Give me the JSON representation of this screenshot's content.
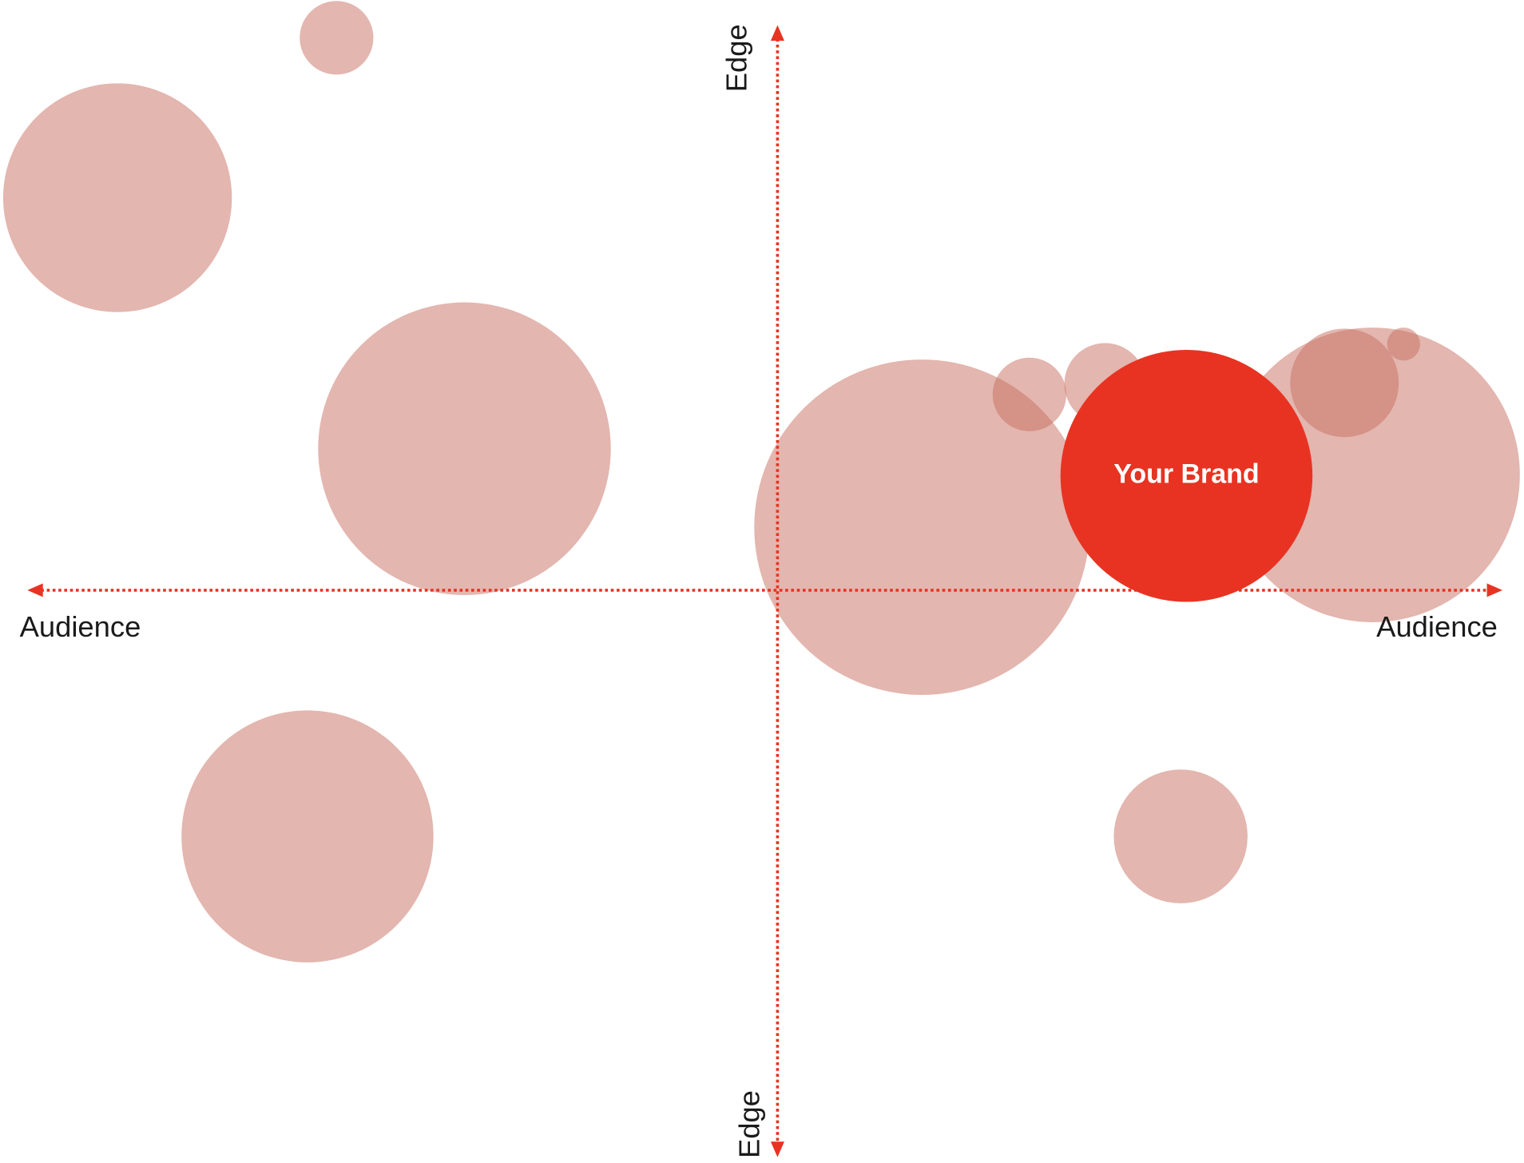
{
  "axes": {
    "y_top": "Edge",
    "y_bottom": "Edge",
    "x_left": "Audience",
    "x_right": "Audience"
  },
  "brand": {
    "label": "Your Brand"
  }
}
